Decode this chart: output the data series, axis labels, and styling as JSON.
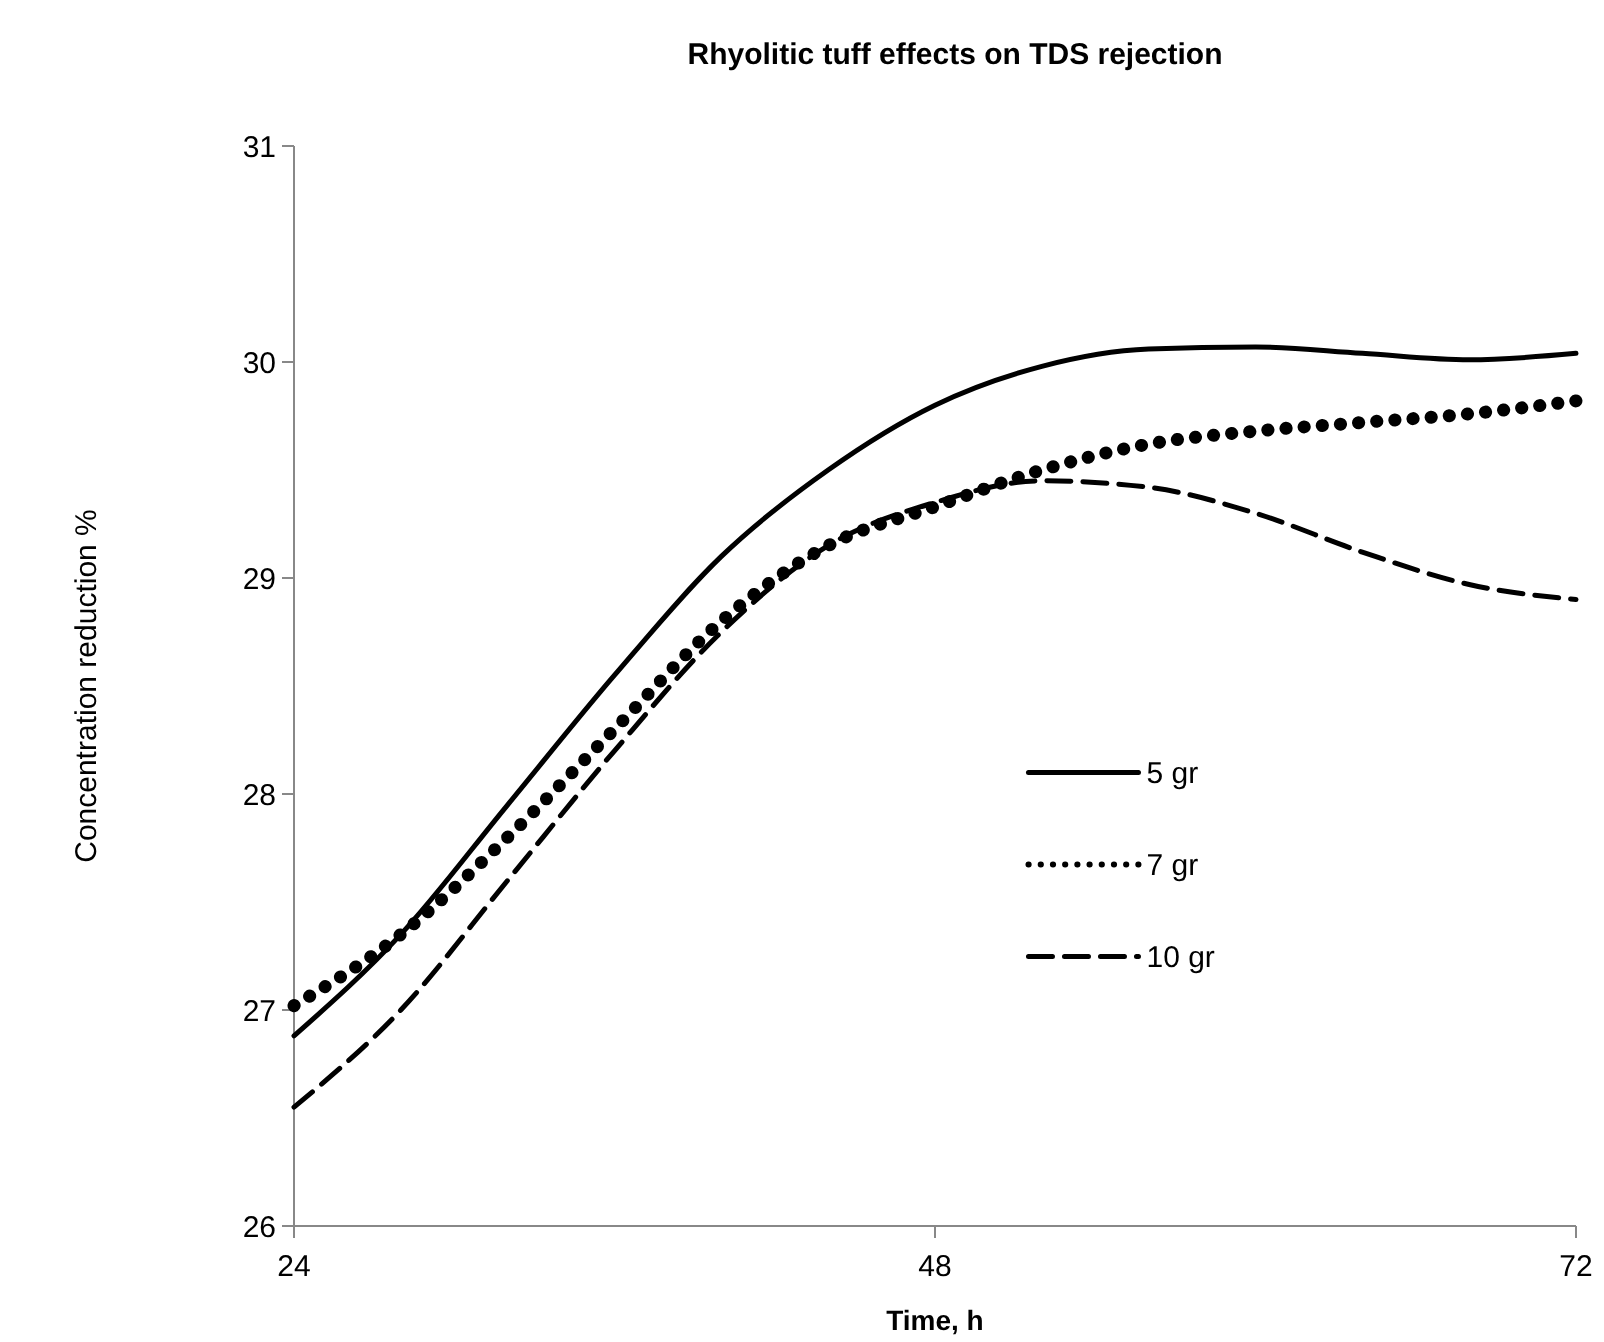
{
  "chart_data": {
    "type": "line",
    "title": "Rhyolitic tuff  effects on TDS rejection",
    "xlabel": "Time, h",
    "ylabel": "Concentration reduction %",
    "xlim": [
      24,
      72
    ],
    "xticks": [
      24,
      48,
      72
    ],
    "ylim": [
      26,
      31
    ],
    "yticks": [
      26,
      27,
      28,
      29,
      30,
      31
    ],
    "grid": false,
    "legend": "right",
    "x": [
      24,
      28,
      32,
      36,
      40,
      44,
      48,
      52,
      56,
      60,
      64,
      68,
      72
    ],
    "series": [
      {
        "name": "5 gr",
        "color": "#000000",
        "line_style": "solid",
        "values": [
          26.88,
          27.35,
          27.95,
          28.55,
          29.1,
          29.5,
          29.8,
          29.98,
          30.06,
          30.07,
          30.04,
          30.01,
          30.04
        ]
      },
      {
        "name": "7 gr",
        "color": "#000000",
        "line_style": "dotted",
        "values": [
          27.02,
          27.35,
          27.8,
          28.3,
          28.8,
          29.15,
          29.33,
          29.5,
          29.62,
          29.68,
          29.72,
          29.76,
          29.82
        ]
      },
      {
        "name": "10 gr",
        "color": "#000000",
        "line_style": "dashed",
        "values": [
          26.55,
          27.0,
          27.6,
          28.2,
          28.75,
          29.15,
          29.35,
          29.45,
          29.42,
          29.3,
          29.12,
          28.97,
          28.9
        ]
      }
    ]
  }
}
